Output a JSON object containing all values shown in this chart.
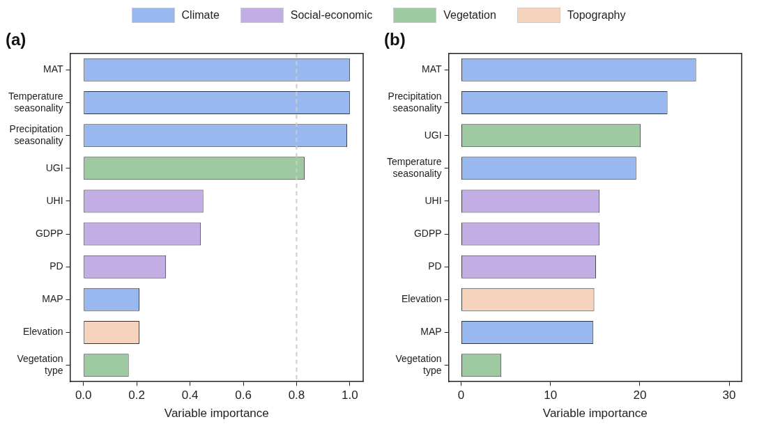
{
  "chart_data": [
    {
      "type": "bar",
      "title": "(a)",
      "orientation": "horizontal",
      "stacked": true,
      "xlabel": "Variable importance",
      "categories": [
        "MAT",
        "Temperature seasonality",
        "Precipitation seasonality",
        "UGI",
        "UHI",
        "GDPP",
        "PD",
        "MAP",
        "Elevation",
        "Vegetation type"
      ],
      "series": [
        {
          "name": "Climate",
          "color": "#99b8ef",
          "values": [
            1.0,
            1.0,
            0.99,
            null,
            null,
            null,
            null,
            0.21,
            null,
            null
          ]
        },
        {
          "name": "Social-economic",
          "color": "#c3ade5",
          "values": [
            null,
            null,
            null,
            null,
            0.45,
            0.44,
            0.31,
            null,
            null,
            null
          ]
        },
        {
          "name": "Vegetation",
          "color": "#9fc9a0",
          "values": [
            null,
            null,
            null,
            0.83,
            null,
            null,
            null,
            null,
            null,
            0.17
          ]
        },
        {
          "name": "Topography",
          "color": "#f5d3bd",
          "values": [
            null,
            null,
            null,
            null,
            null,
            null,
            null,
            null,
            0.21,
            null
          ]
        }
      ],
      "xlim": [
        -0.05,
        1.05
      ],
      "xticks": [
        {
          "value": 0,
          "label": "0.0"
        },
        0.2,
        0.4,
        0.6,
        0.8,
        {
          "value": 1,
          "label": "1.0"
        }
      ],
      "ref_lines": [
        {
          "axis": "x",
          "value": 0.8,
          "label": null,
          "color": "#cccccc",
          "line_style": "dashed"
        }
      ],
      "legend": "top",
      "grid": false
    },
    {
      "type": "bar",
      "title": "(b)",
      "orientation": "horizontal",
      "stacked": true,
      "xlabel": "Variable importance",
      "categories": [
        "MAT",
        "Precipitation seasonality",
        "UGI",
        "Temperature seasonality",
        "UHI",
        "GDPP",
        "PD",
        "Elevation",
        "MAP",
        "Vegetation type"
      ],
      "series": [
        {
          "color": "#99b8ef",
          "values": [
            26.3,
            23.1,
            null,
            19.6,
            null,
            null,
            null,
            null,
            14.8,
            null
          ]
        },
        {
          "color": "#c3ade5",
          "values": [
            null,
            null,
            null,
            null,
            15.5,
            15.5,
            15.1,
            null,
            null,
            null
          ]
        },
        {
          "color": "#9fc9a0",
          "values": [
            null,
            null,
            20.1,
            null,
            null,
            null,
            null,
            null,
            null,
            4.5
          ]
        },
        {
          "color": "#f5d3bd",
          "values": [
            null,
            null,
            null,
            null,
            null,
            null,
            null,
            14.9,
            null,
            null
          ]
        }
      ],
      "xlim": [
        -1.4,
        31.4
      ],
      "xticks": [
        0,
        10,
        20,
        30
      ],
      "grid": false
    }
  ]
}
